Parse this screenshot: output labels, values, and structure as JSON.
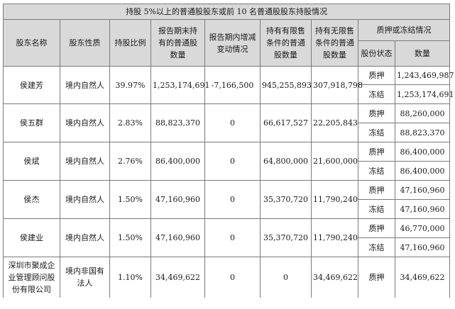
{
  "table": {
    "title": "持股 5%以上的普通股股东或前 10 名普通股股东持股情况",
    "headers": {
      "name": [
        "股东名称"
      ],
      "nature": [
        "股东性质"
      ],
      "ratio": [
        "持股比例"
      ],
      "held": [
        "报告期末持",
        "有的普通股",
        "数量"
      ],
      "change": [
        "报告期内增减",
        "变动情况"
      ],
      "restricted": [
        "持有有限售",
        "条件的普通",
        "股数量"
      ],
      "unrestricted": [
        "持有无限售",
        "条件的普通",
        "股数量"
      ],
      "pledge_group": "质押或冻结情况",
      "status": "股份状态",
      "quantity": "数量"
    },
    "rows": [
      {
        "name": [
          "侯建芳"
        ],
        "nature": [
          "境内自然人"
        ],
        "ratio": "39.97%",
        "held": "1,253,174,691",
        "change": "-7,166,500",
        "restricted": "945,255,893",
        "unrestricted": "307,918,798",
        "pledges": [
          {
            "status": "质押",
            "quantity": "1,243,469,987"
          },
          {
            "status": "冻结",
            "quantity": "1,253,174,691"
          }
        ]
      },
      {
        "name": [
          "侯五群"
        ],
        "nature": [
          "境内自然人"
        ],
        "ratio": "2.83%",
        "held": "88,823,370",
        "change": "0",
        "restricted": "66,617,527",
        "unrestricted": "22,205,843",
        "pledges": [
          {
            "status": "质押",
            "quantity": "88,260,000"
          },
          {
            "status": "冻结",
            "quantity": "88,823,370"
          }
        ]
      },
      {
        "name": [
          "侯斌"
        ],
        "nature": [
          "境内自然人"
        ],
        "ratio": "2.76%",
        "held": "86,400,000",
        "change": "0",
        "restricted": "64,800,000",
        "unrestricted": "21,600,000",
        "pledges": [
          {
            "status": "质押",
            "quantity": "86,400,000"
          },
          {
            "status": "冻结",
            "quantity": "86,400,000"
          }
        ]
      },
      {
        "name": [
          "侯杰"
        ],
        "nature": [
          "境内自然人"
        ],
        "ratio": "1.50%",
        "held": "47,160,960",
        "change": "0",
        "restricted": "35,370,720",
        "unrestricted": "11,790,240",
        "pledges": [
          {
            "status": "质押",
            "quantity": "47,160,960"
          },
          {
            "status": "冻结",
            "quantity": "47,160,960"
          }
        ]
      },
      {
        "name": [
          "侯建业"
        ],
        "nature": [
          "境内自然人"
        ],
        "ratio": "1.50%",
        "held": "47,160,960",
        "change": "0",
        "restricted": "35,370,720",
        "unrestricted": "11,790,240",
        "pledges": [
          {
            "status": "质押",
            "quantity": "46,770,000"
          },
          {
            "status": "冻结",
            "quantity": "47,160,960"
          }
        ]
      },
      {
        "name": [
          "深圳市聚成企",
          "业管理顾问股",
          "份有限公司"
        ],
        "nature": [
          "境内非国有",
          "法人"
        ],
        "ratio": "1.10%",
        "held": "34,469,622",
        "change": "0",
        "restricted": "0",
        "unrestricted": "34,469,622",
        "pledges": [
          {
            "status": "质押",
            "quantity": "34,469,622"
          }
        ]
      }
    ]
  }
}
